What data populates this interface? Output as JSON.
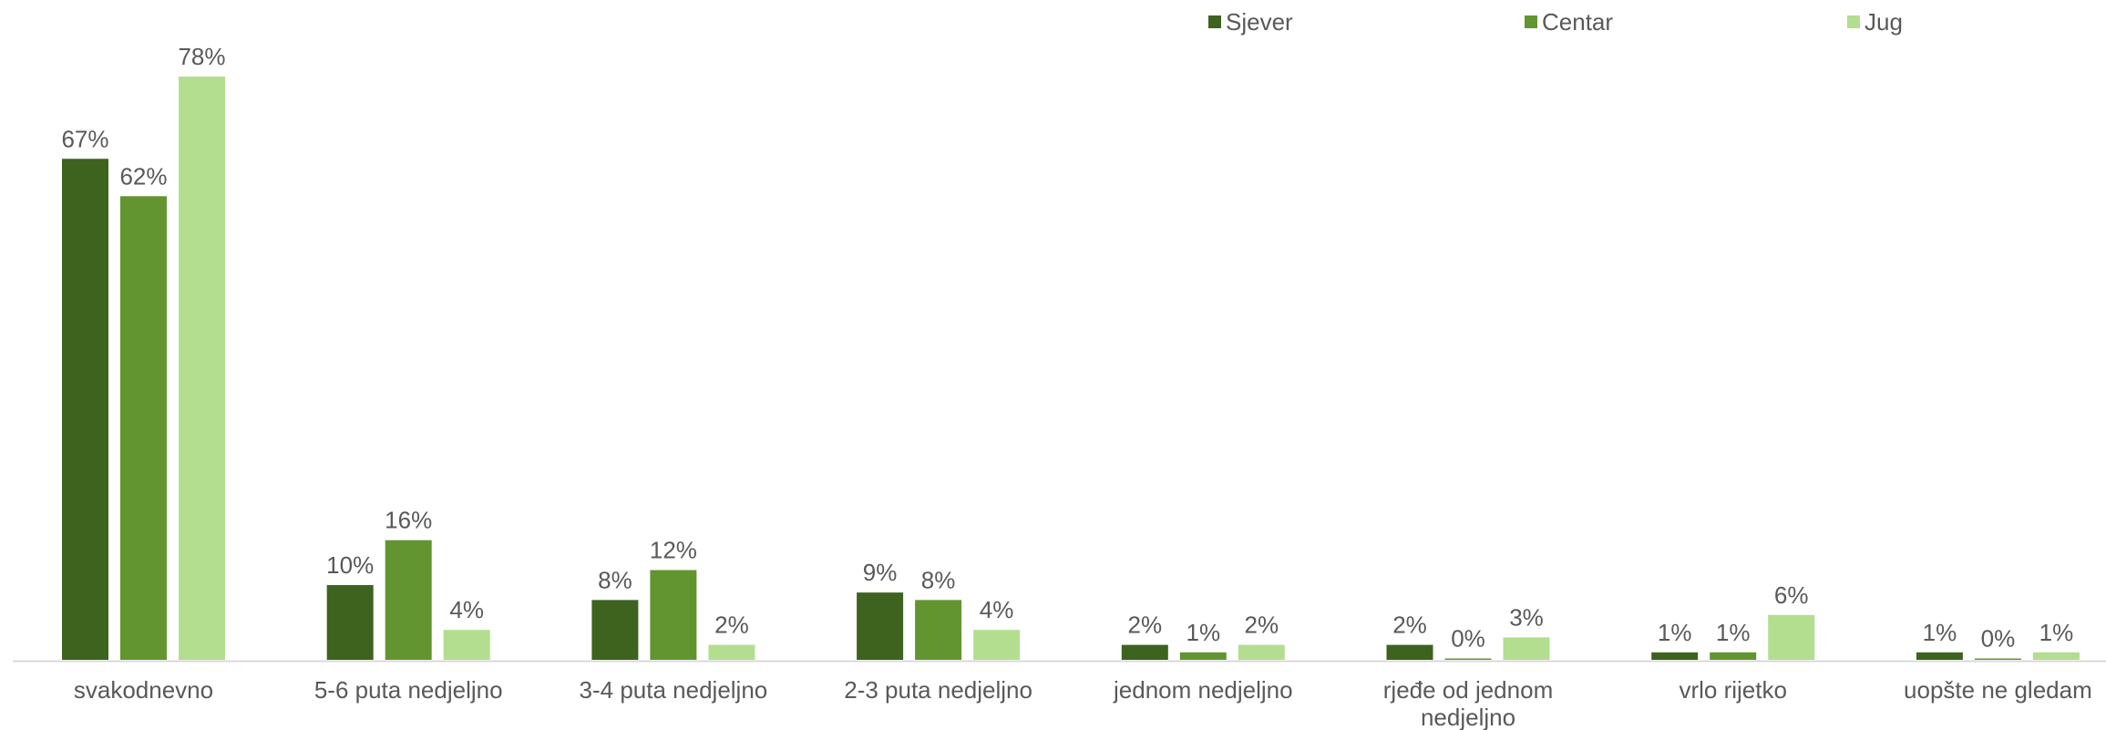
{
  "chart_data": {
    "type": "bar",
    "title": "",
    "xlabel": "",
    "ylabel": "",
    "ylim": [
      0,
      80
    ],
    "grid": false,
    "legend_position": "top-right",
    "categories": [
      "svakodnevno",
      "5-6 puta nedjeljno",
      "3-4 puta nedjeljno",
      "2-3 puta nedjeljno",
      "jednom nedjeljno",
      "rjeđe od jednom nedjeljno",
      "vrlo rijetko",
      "uopšte ne gledam"
    ],
    "series": [
      {
        "name": "Sjever",
        "color": "#3d631f",
        "values": [
          67,
          10,
          8,
          9,
          2,
          2,
          1,
          1
        ],
        "labels": [
          "67%",
          "10%",
          "8%",
          "9%",
          "2%",
          "2%",
          "1%",
          "1%"
        ]
      },
      {
        "name": "Centar",
        "color": "#62952f",
        "values": [
          62,
          16,
          12,
          8,
          1,
          0,
          1,
          0
        ],
        "labels": [
          "62%",
          "16%",
          "12%",
          "8%",
          "1%",
          "0%",
          "1%",
          "0%"
        ]
      },
      {
        "name": "Jug",
        "color": "#b3de8f",
        "values": [
          78,
          4,
          2,
          4,
          2,
          3,
          6,
          1
        ],
        "labels": [
          "78%",
          "4%",
          "2%",
          "4%",
          "2%",
          "3%",
          "6%",
          "1%"
        ]
      }
    ]
  }
}
